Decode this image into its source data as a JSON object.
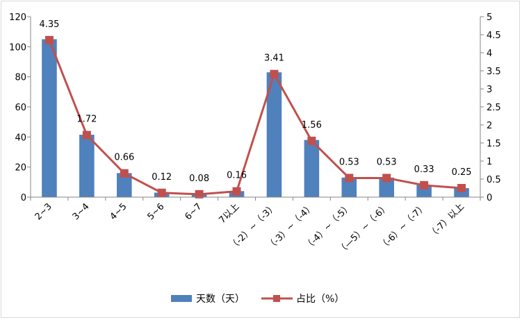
{
  "chart_data": {
    "type": "bar",
    "categories": [
      "2~3",
      "3~4",
      "4~5",
      "5~6",
      "6~7",
      "7以上",
      "（-2）~（-3）",
      "（-3）~（-4）",
      "（-4）~（-5）",
      "（—5）~（-6）",
      "（-6）~（-7）",
      "（-7）以上"
    ],
    "series": [
      {
        "name": "天数（天）",
        "type": "bar",
        "axis": "left",
        "color": "#4f81bd",
        "values": [
          105,
          41.5,
          16,
          3,
          2,
          4,
          83,
          38,
          13,
          13,
          8,
          6
        ]
      },
      {
        "name": "占比（%）",
        "type": "line",
        "axis": "right",
        "color": "#c0504d",
        "values": [
          4.35,
          1.72,
          0.66,
          0.12,
          0.08,
          0.16,
          3.41,
          1.56,
          0.53,
          0.53,
          0.33,
          0.25
        ],
        "data_labels": [
          "4.35",
          "1.72",
          "0.66",
          "0.12",
          "0.08",
          "0.16",
          "3.41",
          "1.56",
          "0.53",
          "0.53",
          "0.33",
          "0.25"
        ]
      }
    ],
    "y_left": {
      "ylim": [
        0,
        120
      ],
      "ticks": [
        "0",
        "20",
        "40",
        "60",
        "80",
        "100",
        "120"
      ]
    },
    "y_right": {
      "ylim": [
        0,
        5
      ],
      "ticks": [
        "0",
        "0.5",
        "1",
        "1.5",
        "2",
        "2.5",
        "3",
        "3.5",
        "4",
        "4.5",
        "5"
      ]
    },
    "title": "",
    "xlabel": "",
    "ylabel": "",
    "grid": false,
    "legend_position": "bottom"
  }
}
